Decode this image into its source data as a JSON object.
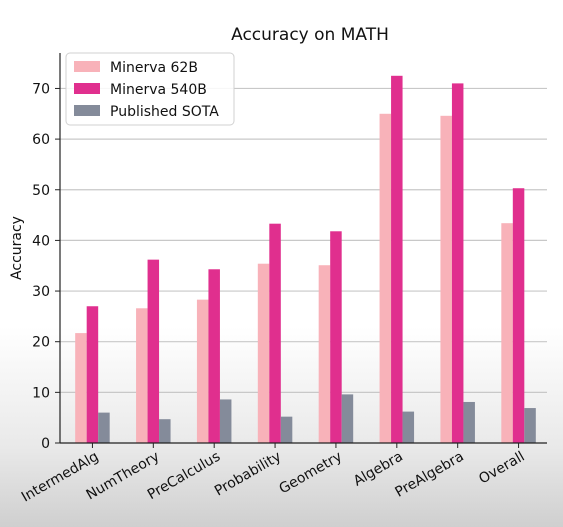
{
  "chart_data": {
    "type": "bar",
    "title": "Accuracy on MATH",
    "xlabel": "",
    "ylabel": "Accuracy",
    "ylim": [
      0,
      77
    ],
    "yticks": [
      0,
      10,
      20,
      30,
      40,
      50,
      60,
      70
    ],
    "grid": true,
    "legend_position": "top-left",
    "categories": [
      "IntermedAlg",
      "NumTheory",
      "PreCalculus",
      "Probability",
      "Geometry",
      "Algebra",
      "PreAlgebra",
      "Overall"
    ],
    "series": [
      {
        "name": "Minerva 62B",
        "color": "#f8b2b9",
        "values": [
          21.7,
          26.6,
          28.3,
          35.4,
          35.1,
          65.0,
          64.6,
          43.4
        ]
      },
      {
        "name": "Minerva 540B",
        "color": "#e02f8e",
        "values": [
          27.0,
          36.2,
          34.3,
          43.3,
          41.8,
          72.5,
          71.0,
          50.3
        ]
      },
      {
        "name": "Published SOTA",
        "color": "#848b9a",
        "values": [
          6.0,
          4.7,
          8.6,
          5.2,
          9.6,
          6.2,
          8.1,
          6.9
        ]
      }
    ]
  }
}
